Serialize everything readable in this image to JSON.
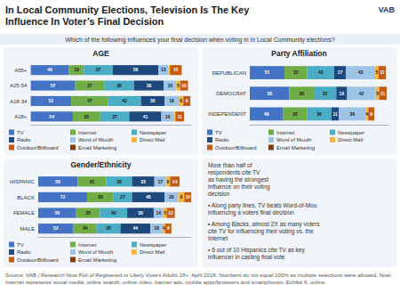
{
  "title": "In Local Community Elections, Television Is The Key\nInfluence In Voter’s Final Decision",
  "subtitle": "Which of the following influences your final decision when voting in in Local Community elections?",
  "annotations": [
    "VAB",
    "Source: VAB / Research Now Poll of Registered or Likely Voters Adults 18+; April 2016; Numbers do not equal 100% as multiple selections were allowed. Note: Internet represents social media, online search, online video, banner ads, mobile apps/browsers and smartphones. Exhibit 6, online."
  ],
  "chart_data": [
    {
      "type": "bar",
      "title": "AGE",
      "orientation": "horizontal",
      "stacked": true,
      "data_labels": true,
      "tick_labels": "y",
      "grid": false,
      "legend": "bottom",
      "xlim": [
        0,
        205
      ],
      "categories": [
        "A18+",
        "A18-34",
        "A25-54",
        "A55+"
      ],
      "series": [
        {
          "name": "TV",
          "color": "#4472c4",
          "values": [
            54,
            52,
            57,
            49
          ]
        },
        {
          "name": "Internet",
          "color": "#70ad47",
          "values": [
            35,
            47,
            37,
            19
          ]
        },
        {
          "name": "Newspaper",
          "color": "#4bacc6",
          "values": [
            37,
            42,
            38,
            37
          ]
        },
        {
          "name": "Radio",
          "color": "#1f497d",
          "values": [
            41,
            30,
            38,
            58
          ]
        },
        {
          "name": "Word of Mouth",
          "color": "#9dc3e6",
          "values": [
            16,
            18,
            16,
            13
          ]
        },
        {
          "name": "Direct Mail",
          "color": "#f4b942",
          "values": [
            2,
            6,
            5,
            2
          ],
          "value_labels": [
            null,
            "6",
            "5",
            null
          ]
        },
        {
          "name": "Outdoor/Billboard",
          "color": "#c55a11",
          "values": [
            11,
            9,
            10,
            15
          ]
        },
        {
          "name": "Email Marketing",
          "color": "#843c0c",
          "values": [
            null,
            null,
            null,
            null
          ]
        }
      ],
      "annotations": [
        "More than half of\nrespondents cite TV\nas having the strongest\ninfluence on their voting\ndecision"
      ]
    },
    {
      "type": "bar",
      "title": "Party Affiliation",
      "orientation": "horizontal",
      "stacked": true,
      "data_labels": true,
      "tick_labels": "y",
      "grid": false,
      "legend": "bottom",
      "xlim": [
        0,
        205
      ],
      "categories": [
        "INDEPENDENT",
        "DEMOCRAT",
        "REPUBLICAN"
      ],
      "series": [
        {
          "name": "TV",
          "color": "#4472c4",
          "values": [
            49,
            58,
            51
          ]
        },
        {
          "name": "Internet",
          "color": "#70ad47",
          "values": [
            35,
            36,
            33
          ]
        },
        {
          "name": "Newspaper",
          "color": "#4bacc6",
          "values": [
            36,
            33,
            40
          ]
        },
        {
          "name": "Radio",
          "color": "#1f497d",
          "values": [
            11,
            16,
            17
          ]
        },
        {
          "name": "Word of Mouth",
          "color": "#9dc3e6",
          "values": [
            39,
            42,
            43
          ]
        },
        {
          "name": "Direct Mail",
          "color": "#f4b942",
          "values": [
            4,
            5,
            5
          ]
        },
        {
          "name": "Outdoor/Billboard",
          "color": "#c55a11",
          "values": [
            9,
            11,
            11
          ]
        },
        {
          "name": "Email Marketing",
          "color": "#843c0c",
          "values": [
            null,
            null,
            null
          ]
        }
      ],
      "annotations": [
        "• Along party lines, TV beats Word-of-Mou\ninfluencing a voters final decision"
      ]
    },
    {
      "type": "bar",
      "title": "Gender/Ethnicity",
      "orientation": "horizontal",
      "stacked": true,
      "data_labels": true,
      "tick_labels": "y",
      "grid": false,
      "legend": "bottom",
      "xlim": [
        0,
        225
      ],
      "categories": [
        "MALE",
        "FEMALE",
        "BLACK",
        "HISPANIC"
      ],
      "series": [
        {
          "name": "TV",
          "color": "#4472c4",
          "values": [
            52,
            56,
            72,
            58
          ]
        },
        {
          "name": "Internet",
          "color": "#70ad47",
          "values": [
            34,
            35,
            39,
            42
          ]
        },
        {
          "name": "Newspaper",
          "color": "#4bacc6",
          "values": [
            35,
            40,
            27,
            38
          ]
        },
        {
          "name": "Radio",
          "color": "#1f497d",
          "values": [
            44,
            39,
            48,
            33
          ]
        },
        {
          "name": "Word of Mouth",
          "color": "#9dc3e6",
          "values": [
            18,
            14,
            20,
            17
          ]
        },
        {
          "name": "Direct Mail",
          "color": "#f4b942",
          "values": [
            4,
            5,
            9,
            6
          ]
        },
        {
          "name": "Outdoor/Billboard",
          "color": "#c55a11",
          "values": [
            9,
            12,
            10,
            14
          ]
        },
        {
          "name": "Email Marketing",
          "color": "#843c0c",
          "values": [
            null,
            null,
            null,
            null
          ]
        }
      ],
      "annotations": [
        "• Among Blacks, almost 2X as many voters\ncite TV for influencing their voting vs. the\nInternet",
        "• 6 out of 10 Hispanics cite TV as key\ninfluencer in casting final vote"
      ]
    }
  ]
}
